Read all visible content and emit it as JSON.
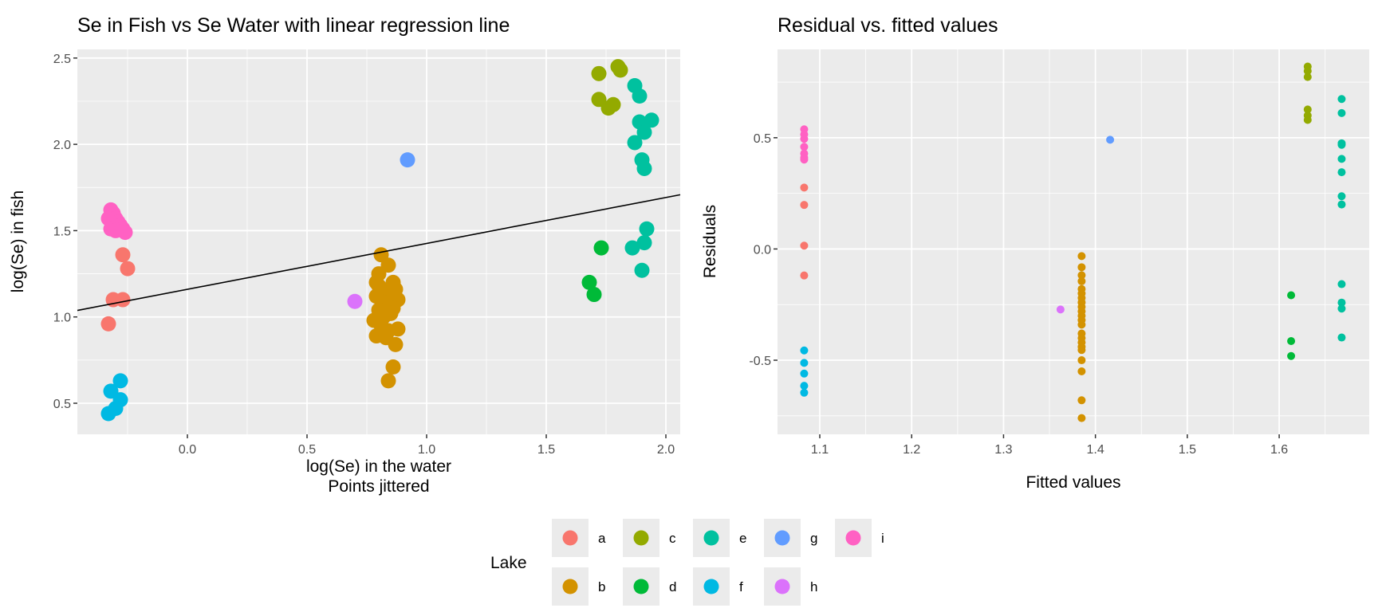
{
  "legend": {
    "title": "Lake",
    "entries": [
      {
        "label": "a",
        "color": "#F8766D"
      },
      {
        "label": "b",
        "color": "#D39200"
      },
      {
        "label": "c",
        "color": "#93AA00"
      },
      {
        "label": "d",
        "color": "#00BA38"
      },
      {
        "label": "e",
        "color": "#00C19F"
      },
      {
        "label": "f",
        "color": "#00B9E3"
      },
      {
        "label": "g",
        "color": "#619CFF"
      },
      {
        "label": "h",
        "color": "#DB72FB"
      },
      {
        "label": "i",
        "color": "#FF61C3"
      }
    ]
  },
  "chart_data": [
    {
      "type": "scatter",
      "title": "Se in Fish vs Se Water with linear regression line",
      "xlabel": "log(Se) in the water",
      "xlabel2": "Points jittered",
      "ylabel": "log(Se) in fish",
      "xlim": [
        -0.46,
        2.06
      ],
      "ylim": [
        0.32,
        2.55
      ],
      "xticks": [
        "0.0",
        "0.5",
        "1.0",
        "1.5",
        "2.0"
      ],
      "yticks": [
        "0.5",
        "1.0",
        "1.5",
        "2.0",
        "2.5"
      ],
      "grid": true,
      "regression_line": {
        "intercept": 1.16,
        "slope": 0.266,
        "color": "#000000"
      },
      "series": [
        {
          "lake": "a",
          "points": [
            [
              -0.27,
              1.36
            ],
            [
              -0.25,
              1.28
            ],
            [
              -0.31,
              1.1
            ],
            [
              -0.27,
              1.1
            ],
            [
              -0.33,
              0.96
            ]
          ]
        },
        {
          "lake": "b",
          "points": [
            [
              0.81,
              1.36
            ],
            [
              0.84,
              1.3
            ],
            [
              0.8,
              1.25
            ],
            [
              0.79,
              1.2
            ],
            [
              0.86,
              1.2
            ],
            [
              0.87,
              1.16
            ],
            [
              0.82,
              1.15
            ],
            [
              0.79,
              1.12
            ],
            [
              0.85,
              1.12
            ],
            [
              0.88,
              1.1
            ],
            [
              0.83,
              1.08
            ],
            [
              0.8,
              1.04
            ],
            [
              0.86,
              1.05
            ],
            [
              0.78,
              0.98
            ],
            [
              0.81,
              0.95
            ],
            [
              0.84,
              0.92
            ],
            [
              0.88,
              0.93
            ],
            [
              0.79,
              0.89
            ],
            [
              0.83,
              0.88
            ],
            [
              0.87,
              0.84
            ],
            [
              0.86,
              0.71
            ],
            [
              0.84,
              0.63
            ],
            [
              0.82,
              1.0
            ],
            [
              0.85,
              1.02
            ],
            [
              0.8,
              1.18
            ]
          ]
        },
        {
          "lake": "c",
          "points": [
            [
              1.72,
              2.41
            ],
            [
              1.8,
              2.45
            ],
            [
              1.81,
              2.43
            ],
            [
              1.72,
              2.26
            ],
            [
              1.76,
              2.21
            ],
            [
              1.78,
              2.23
            ]
          ]
        },
        {
          "lake": "d",
          "points": [
            [
              1.73,
              1.4
            ],
            [
              1.68,
              1.2
            ],
            [
              1.7,
              1.13
            ]
          ]
        },
        {
          "lake": "e",
          "points": [
            [
              1.87,
              2.34
            ],
            [
              1.89,
              2.28
            ],
            [
              1.89,
              2.13
            ],
            [
              1.94,
              2.14
            ],
            [
              1.91,
              2.07
            ],
            [
              1.87,
              2.01
            ],
            [
              1.9,
              1.91
            ],
            [
              1.91,
              1.86
            ],
            [
              1.92,
              1.51
            ],
            [
              1.86,
              1.4
            ],
            [
              1.91,
              1.43
            ],
            [
              1.9,
              1.27
            ]
          ]
        },
        {
          "lake": "f",
          "points": [
            [
              -0.28,
              0.63
            ],
            [
              -0.32,
              0.57
            ],
            [
              -0.28,
              0.52
            ],
            [
              -0.3,
              0.47
            ],
            [
              -0.33,
              0.44
            ]
          ]
        },
        {
          "lake": "g",
          "points": [
            [
              0.92,
              1.91
            ]
          ]
        },
        {
          "lake": "h",
          "points": [
            [
              0.7,
              1.09
            ]
          ]
        },
        {
          "lake": "i",
          "points": [
            [
              -0.32,
              1.62
            ],
            [
              -0.31,
              1.6
            ],
            [
              -0.33,
              1.57
            ],
            [
              -0.3,
              1.57
            ],
            [
              -0.29,
              1.55
            ],
            [
              -0.28,
              1.53
            ],
            [
              -0.27,
              1.51
            ],
            [
              -0.26,
              1.49
            ],
            [
              -0.32,
              1.51
            ],
            [
              -0.3,
              1.5
            ]
          ]
        }
      ]
    },
    {
      "type": "scatter",
      "title": "Residual vs. fitted values",
      "xlabel": "Fitted values",
      "ylabel": "Residuals",
      "xlim": [
        1.054,
        1.698
      ],
      "ylim": [
        -0.833,
        0.897
      ],
      "xticks": [
        "1.1",
        "1.2",
        "1.3",
        "1.4",
        "1.5",
        "1.6"
      ],
      "yticks": [
        "-0.5",
        "0.0",
        "0.5"
      ],
      "grid": true,
      "series": [
        {
          "lake": "a",
          "fitted": 1.083,
          "residuals": [
            0.276,
            0.198,
            0.015,
            -0.119
          ]
        },
        {
          "lake": "b",
          "fitted": 1.385,
          "residuals": [
            -0.032,
            -0.082,
            -0.118,
            -0.145,
            -0.18,
            -0.2,
            -0.22,
            -0.24,
            -0.26,
            -0.28,
            -0.3,
            -0.32,
            -0.34,
            -0.38,
            -0.4,
            -0.42,
            -0.44,
            -0.454,
            -0.5,
            -0.55,
            -0.68,
            -0.76
          ]
        },
        {
          "lake": "c",
          "fitted": 1.631,
          "residuals": [
            0.82,
            0.8,
            0.773,
            0.627,
            0.6,
            0.58
          ]
        },
        {
          "lake": "d",
          "fitted": 1.613,
          "residuals": [
            -0.208,
            -0.414,
            -0.481
          ]
        },
        {
          "lake": "e",
          "fitted": 1.668,
          "residuals": [
            0.674,
            0.611,
            0.475,
            0.468,
            0.405,
            0.345,
            0.237,
            0.2,
            -0.158,
            -0.241,
            -0.268,
            -0.398
          ]
        },
        {
          "lake": "f",
          "fitted": 1.083,
          "residuals": [
            -0.456,
            -0.512,
            -0.56,
            -0.615,
            -0.646
          ]
        },
        {
          "lake": "g",
          "fitted": 1.416,
          "residuals": [
            0.491
          ]
        },
        {
          "lake": "h",
          "fitted": 1.362,
          "residuals": [
            -0.272
          ]
        },
        {
          "lake": "i",
          "fitted": 1.083,
          "residuals": [
            0.538,
            0.515,
            0.495,
            0.459,
            0.429,
            0.402,
            0.41
          ]
        }
      ]
    }
  ]
}
